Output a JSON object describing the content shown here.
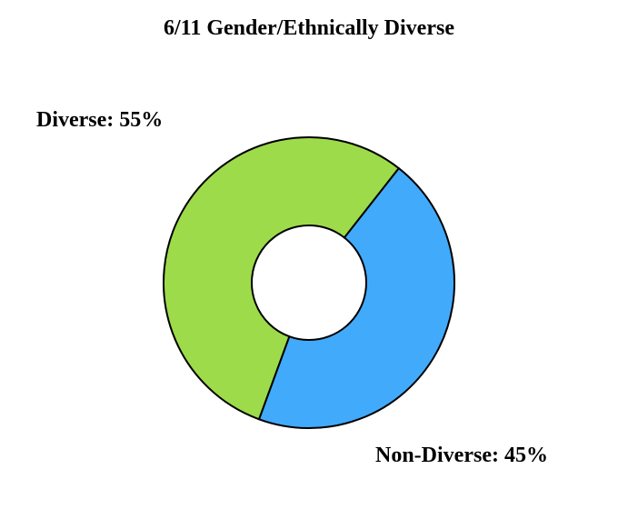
{
  "chart_data": {
    "type": "pie",
    "title": "6/11 Gender/Ethnically Diverse",
    "slices": [
      {
        "name": "Non-Diverse",
        "value": 45,
        "label": "Non-Diverse: 45%",
        "color": "#42aafb"
      },
      {
        "name": "Diverse",
        "value": 55,
        "label": "Diverse: 55%",
        "color": "#9ddb4a"
      }
    ],
    "donut": true
  }
}
